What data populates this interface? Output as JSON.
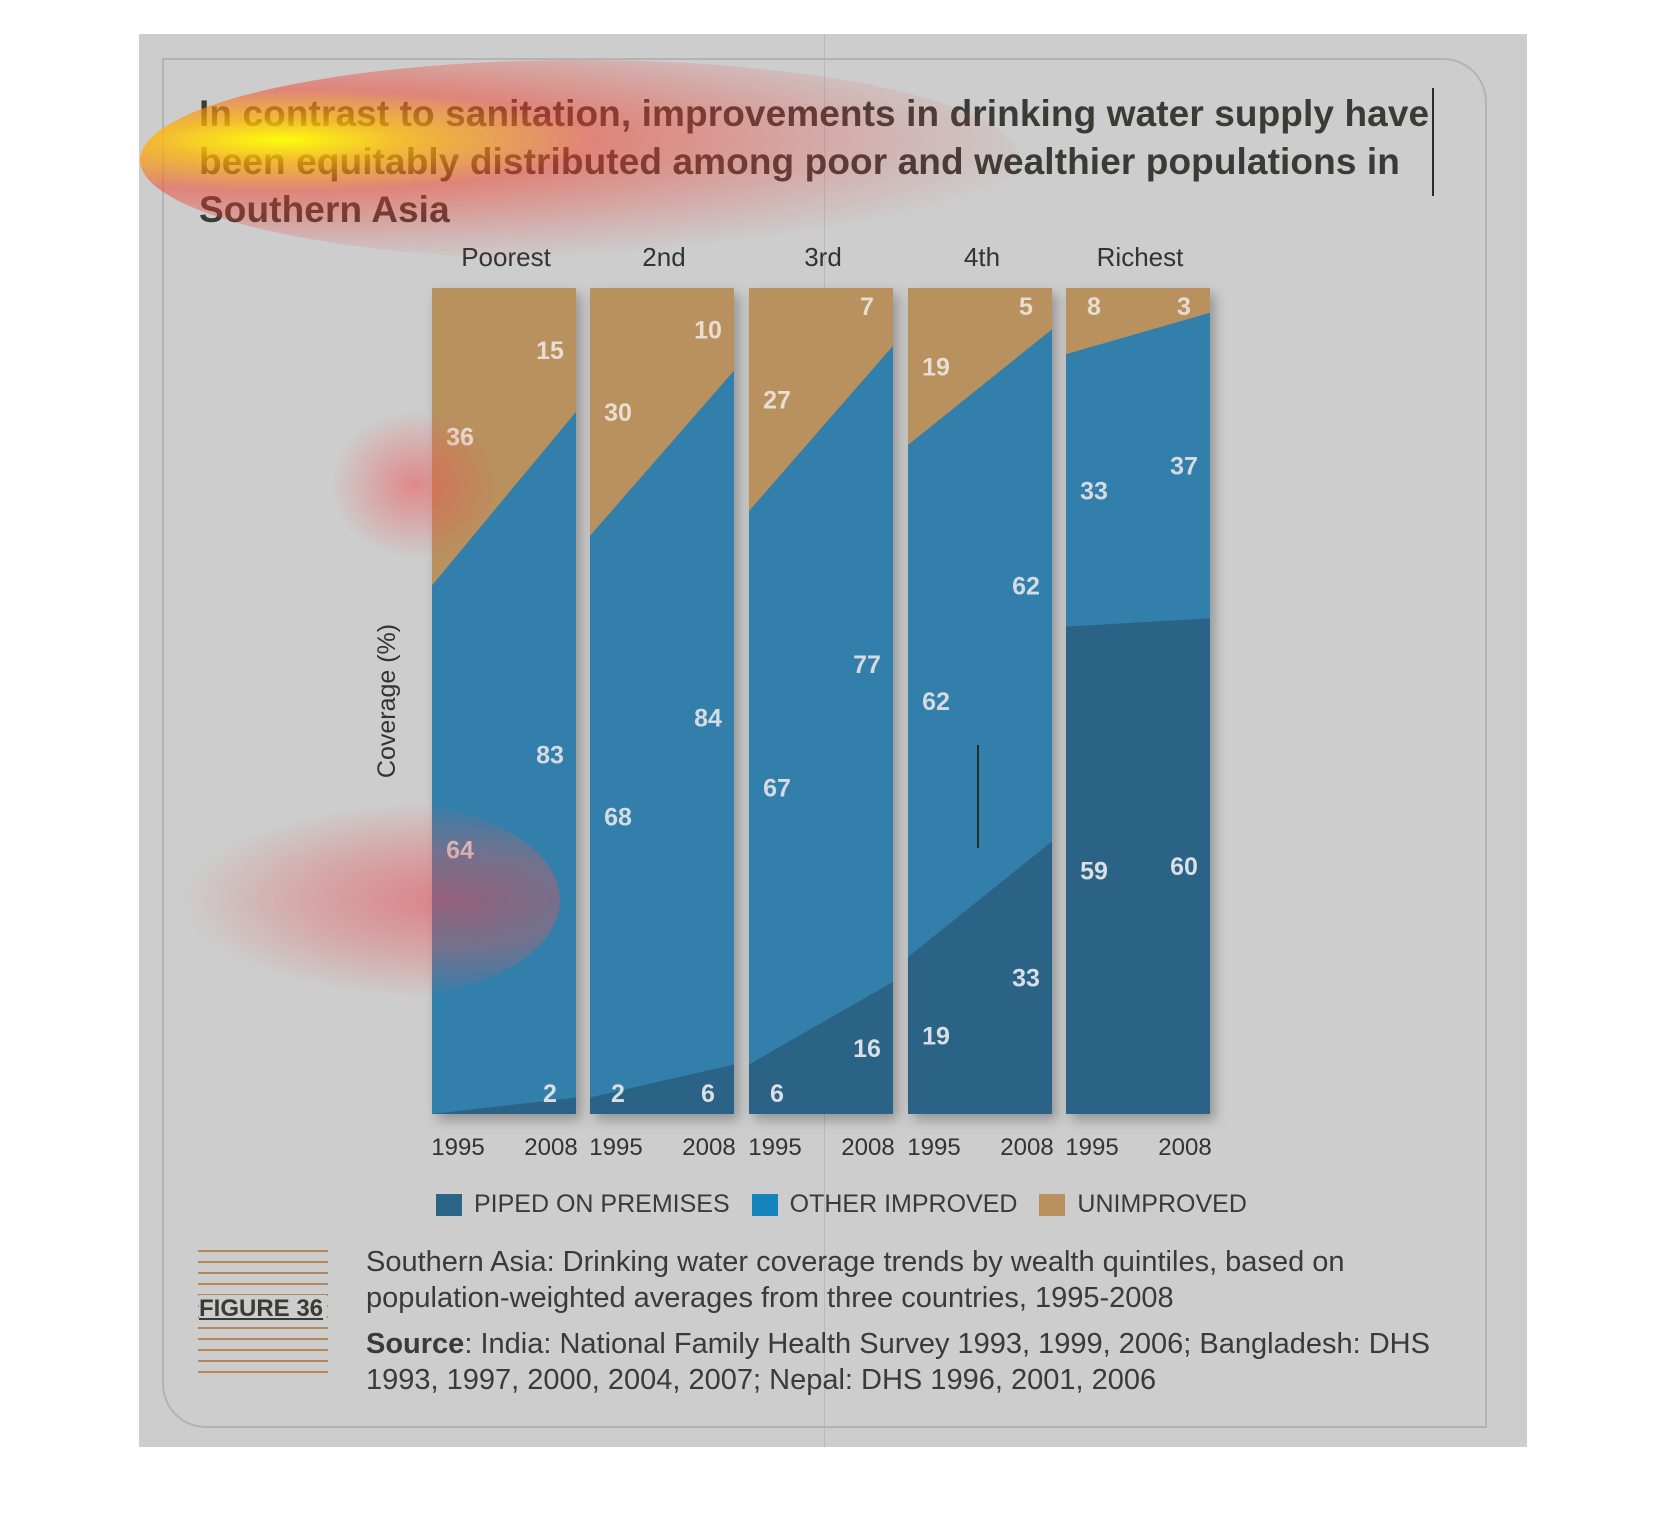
{
  "title": "In contrast to sanitation, improvements in drinking water supply have been equitably distributed among poor and wealthier populations in Southern Asia",
  "figure_label": "FIGURE 36",
  "caption": "Southern Asia: Drinking water coverage trends by wealth quintiles, based on population-weighted averages from three countries, 1995-2008",
  "source_label": "Source",
  "source_text": ": India: National Family Health Survey 1993, 1999, 2006; Bangladesh: DHS 1993, 1997, 2000, 2004, 2007; Nepal: DHS 1996, 2001, 2006",
  "colors": {
    "piped": "#2b6485",
    "other": "#317fab",
    "unimproved": "#b8915f",
    "legend_other": "#1384bc"
  },
  "legend": [
    {
      "label": "PIPED ON PREMISES",
      "color": "#2b6485"
    },
    {
      "label": "OTHER IMPROVED",
      "color": "#1384bc"
    },
    {
      "label": "UNIMPROVED",
      "color": "#b8915f"
    }
  ],
  "chart_data": {
    "type": "area",
    "ylabel": "Coverage (%)",
    "ylim": [
      0,
      100
    ],
    "x": [
      "1995",
      "2008"
    ],
    "panels": [
      {
        "name": "Poorest",
        "piped": [
          0,
          2
        ],
        "other": [
          64,
          83
        ],
        "unimproved": [
          36,
          15
        ],
        "labels": {
          "piped": [
            "",
            "2"
          ],
          "other": [
            "64",
            "83"
          ],
          "unimproved": [
            "36",
            "15"
          ]
        }
      },
      {
        "name": "2nd",
        "piped": [
          2,
          6
        ],
        "other": [
          68,
          84
        ],
        "unimproved": [
          30,
          10
        ],
        "labels": {
          "piped": [
            "2",
            "6"
          ],
          "other": [
            "68",
            "84"
          ],
          "unimproved": [
            "30",
            "10"
          ]
        }
      },
      {
        "name": "3rd",
        "piped": [
          6,
          16
        ],
        "other": [
          67,
          77
        ],
        "unimproved": [
          27,
          7
        ],
        "labels": {
          "piped": [
            "6",
            "16"
          ],
          "other": [
            "67",
            "77"
          ],
          "unimproved": [
            "27",
            "7"
          ]
        }
      },
      {
        "name": "4th",
        "piped": [
          19,
          33
        ],
        "other": [
          62,
          62
        ],
        "unimproved": [
          19,
          5
        ],
        "labels": {
          "piped": [
            "19",
            "33"
          ],
          "other": [
            "62",
            "62"
          ],
          "unimproved": [
            "19",
            "5"
          ]
        }
      },
      {
        "name": "Richest",
        "piped": [
          59,
          60
        ],
        "other": [
          33,
          37
        ],
        "unimproved": [
          8,
          3
        ],
        "labels": {
          "piped": [
            "59",
            "60"
          ],
          "other": [
            "33",
            "37"
          ],
          "unimproved": [
            "8",
            "3"
          ]
        }
      }
    ],
    "legend_position": "bottom"
  }
}
